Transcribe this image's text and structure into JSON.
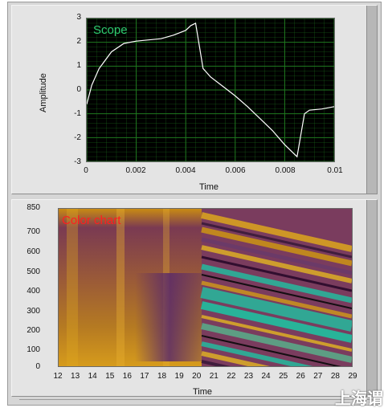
{
  "scope": {
    "title": "Scope",
    "title_color": "#2ecc71",
    "curve_color": "#ffffff",
    "grid_color": "#1f7a1f",
    "chart_data": {
      "type": "line",
      "title": "Scope",
      "xlabel": "Time",
      "ylabel": "Amplitude",
      "xlim": [
        0,
        0.01
      ],
      "ylim": [
        -3,
        3
      ],
      "x_ticks": [
        "0",
        "0.002",
        "0.004",
        "0.006",
        "0.008",
        "0.01"
      ],
      "y_ticks": [
        "3",
        "2",
        "1",
        "0",
        "-1",
        "-2",
        "-3"
      ],
      "series": [
        {
          "x": [
            0,
            0.0002,
            0.0005,
            0.001,
            0.0015,
            0.002,
            0.0025,
            0.003,
            0.0035,
            0.004,
            0.0042,
            0.0044,
            0.0047,
            0.005,
            0.0055,
            0.006,
            0.0065,
            0.007,
            0.0075,
            0.008,
            0.0085,
            0.0088,
            0.009,
            0.0095,
            0.01
          ],
          "y": [
            -0.6,
            0.2,
            0.9,
            1.6,
            1.95,
            2.05,
            2.1,
            2.15,
            2.3,
            2.5,
            2.7,
            2.8,
            0.9,
            0.55,
            0.15,
            -0.25,
            -0.7,
            -1.2,
            -1.7,
            -2.3,
            -2.8,
            -1.0,
            -0.85,
            -0.8,
            -0.7
          ]
        }
      ]
    }
  },
  "color_chart": {
    "title": "Color chart",
    "title_color": "#ff1f1f",
    "chart_data": {
      "type": "heatmap",
      "title": "Color chart",
      "xlabel": "Time",
      "xlim": [
        12,
        29
      ],
      "ylim": [
        0,
        850
      ],
      "x_ticks": [
        "12",
        "13",
        "14",
        "15",
        "16",
        "17",
        "18",
        "19",
        "20",
        "21",
        "22",
        "23",
        "24",
        "25",
        "26",
        "27",
        "28",
        "29"
      ],
      "y_ticks": [
        "850",
        "700",
        "600",
        "500",
        "400",
        "300",
        "200",
        "100",
        "0"
      ]
    }
  },
  "logo_text": "上海谓"
}
